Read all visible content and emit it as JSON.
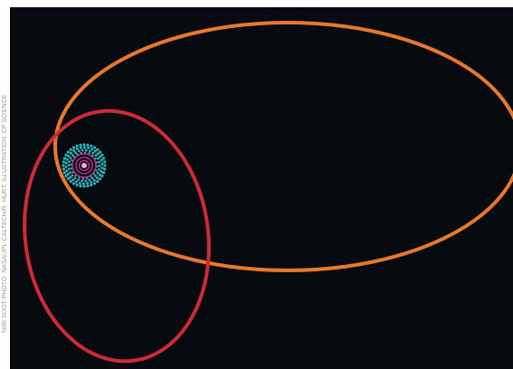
{
  "image": {
    "background_color": "#070a0f",
    "credit_text": "NIRI SOOT PHOTO: NASA/JPL-CALTECH/R. HURT; ILLUSTRATION: CP SCIENCE"
  },
  "orbits": [
    {
      "name": "outer-orbit",
      "color": "#e8792a"
    },
    {
      "name": "inner-orbit",
      "color": "#cf2a35"
    }
  ],
  "system": {
    "disk_color": "#2ab3b8",
    "ring_color": "#b8318f",
    "core_color": "#f3a6e3"
  }
}
